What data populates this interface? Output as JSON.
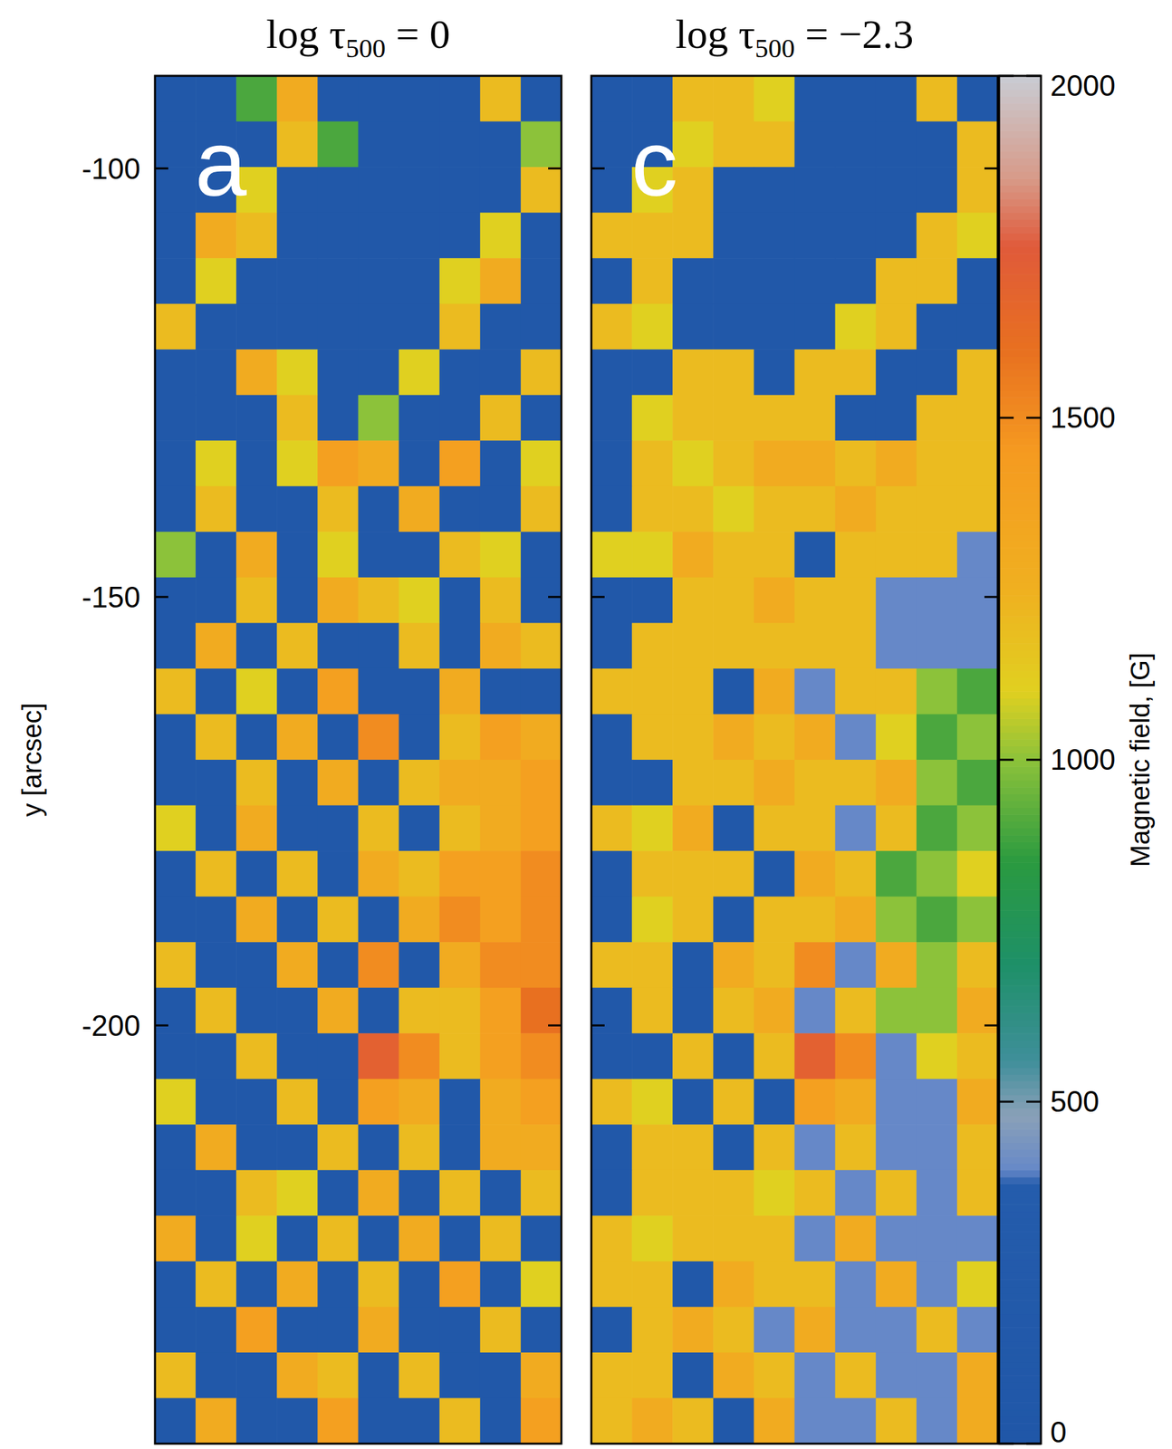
{
  "chart_data": [
    {
      "type": "heatmap",
      "title": "log τ500 = 0",
      "panel": "a",
      "ylabel": "y [arcsec]",
      "ylim": [
        -248.8,
        -89.2
      ],
      "yticks": [
        -100,
        -150,
        -200
      ],
      "tick_labels": "y",
      "z": [
        [
          100,
          100,
          900,
          1300,
          100,
          100,
          100,
          100,
          1200,
          100
        ],
        [
          100,
          100,
          100,
          1200,
          900,
          100,
          100,
          100,
          100,
          1000
        ],
        [
          100,
          100,
          1100,
          100,
          100,
          100,
          100,
          100,
          100,
          1200
        ],
        [
          100,
          1300,
          1200,
          100,
          100,
          100,
          100,
          100,
          1100,
          100
        ],
        [
          100,
          1100,
          100,
          100,
          100,
          100,
          100,
          1100,
          1300,
          100
        ],
        [
          1200,
          100,
          100,
          100,
          100,
          100,
          100,
          1200,
          100,
          100
        ],
        [
          100,
          100,
          1300,
          1100,
          100,
          100,
          1100,
          100,
          100,
          1200
        ],
        [
          100,
          100,
          100,
          1200,
          100,
          1000,
          100,
          100,
          1200,
          100
        ],
        [
          100,
          1100,
          100,
          1100,
          1400,
          1300,
          100,
          1400,
          100,
          1100
        ],
        [
          100,
          1200,
          100,
          100,
          1200,
          100,
          1300,
          100,
          100,
          1200
        ],
        [
          1000,
          100,
          1300,
          100,
          1100,
          100,
          100,
          1200,
          1100,
          100
        ],
        [
          100,
          100,
          1200,
          100,
          1300,
          1200,
          1100,
          100,
          1200,
          100
        ],
        [
          100,
          1300,
          100,
          1200,
          100,
          100,
          1200,
          100,
          1300,
          1200
        ],
        [
          1200,
          100,
          1100,
          100,
          1400,
          100,
          100,
          1300,
          100,
          100
        ],
        [
          100,
          1200,
          100,
          1300,
          100,
          1500,
          100,
          1200,
          1400,
          1300
        ],
        [
          100,
          100,
          1200,
          100,
          1300,
          100,
          1200,
          1300,
          1300,
          1400
        ],
        [
          1100,
          100,
          1300,
          100,
          100,
          1200,
          100,
          1200,
          1300,
          1400
        ],
        [
          100,
          1200,
          100,
          1200,
          100,
          1300,
          1200,
          1400,
          1400,
          1500
        ],
        [
          100,
          100,
          1300,
          100,
          1200,
          100,
          1300,
          1500,
          1400,
          1500
        ],
        [
          1200,
          100,
          100,
          1300,
          100,
          1500,
          100,
          1300,
          1500,
          1500
        ],
        [
          100,
          1200,
          100,
          100,
          1300,
          100,
          1200,
          1200,
          1400,
          1600
        ],
        [
          100,
          100,
          1200,
          100,
          100,
          1700,
          1500,
          1200,
          1400,
          1500
        ],
        [
          1100,
          100,
          100,
          1200,
          100,
          1400,
          1300,
          100,
          1300,
          1400
        ],
        [
          100,
          1300,
          100,
          100,
          1200,
          100,
          1200,
          100,
          1300,
          1300
        ],
        [
          100,
          100,
          1200,
          1100,
          100,
          1300,
          100,
          1200,
          100,
          1200
        ],
        [
          1300,
          100,
          1100,
          100,
          1200,
          100,
          1300,
          100,
          1200,
          100
        ],
        [
          100,
          1200,
          100,
          1300,
          100,
          1200,
          100,
          1400,
          100,
          1100
        ],
        [
          100,
          100,
          1400,
          100,
          100,
          1300,
          100,
          100,
          1200,
          100
        ],
        [
          1200,
          100,
          100,
          1300,
          1200,
          100,
          1200,
          100,
          100,
          1300
        ],
        [
          100,
          1300,
          100,
          100,
          1400,
          100,
          100,
          1200,
          100,
          1400
        ]
      ]
    },
    {
      "type": "heatmap",
      "title": "log τ500 = −2.3",
      "panel": "c",
      "ylim": [
        -248.8,
        -89.2
      ],
      "yticks": [
        -100,
        -150,
        -200
      ],
      "tick_labels": false,
      "colorbar": {
        "range": [
          0,
          2000
        ],
        "ticks": [
          0,
          500,
          1000,
          1500,
          2000
        ],
        "label": "Magnetic field, [G]"
      },
      "z": [
        [
          100,
          100,
          1200,
          1200,
          1100,
          100,
          100,
          100,
          1200,
          100
        ],
        [
          100,
          100,
          1100,
          1200,
          1200,
          100,
          100,
          100,
          100,
          1200
        ],
        [
          100,
          1100,
          1200,
          100,
          100,
          100,
          100,
          100,
          100,
          1200
        ],
        [
          1200,
          1200,
          1200,
          100,
          100,
          100,
          100,
          100,
          1200,
          1100
        ],
        [
          100,
          1200,
          100,
          100,
          100,
          100,
          100,
          1200,
          1200,
          100
        ],
        [
          1200,
          1100,
          100,
          100,
          100,
          100,
          1100,
          1200,
          100,
          100
        ],
        [
          100,
          100,
          1200,
          1200,
          100,
          1200,
          1200,
          100,
          100,
          1200
        ],
        [
          100,
          1100,
          1200,
          1200,
          1200,
          1200,
          100,
          100,
          1200,
          1200
        ],
        [
          100,
          1200,
          1100,
          1200,
          1300,
          1300,
          1200,
          1300,
          1200,
          1200
        ],
        [
          100,
          1200,
          1200,
          1100,
          1200,
          1200,
          1300,
          1200,
          1200,
          1200
        ],
        [
          1100,
          1100,
          1300,
          1200,
          1200,
          100,
          1200,
          1200,
          1200,
          400
        ],
        [
          100,
          100,
          1200,
          1200,
          1300,
          1200,
          1200,
          400,
          400,
          400
        ],
        [
          100,
          1200,
          1200,
          1200,
          1200,
          1200,
          1200,
          400,
          400,
          400
        ],
        [
          1200,
          1200,
          1200,
          100,
          1300,
          400,
          1200,
          1200,
          1000,
          900
        ],
        [
          100,
          1200,
          1200,
          1300,
          1200,
          1300,
          400,
          1100,
          900,
          1000
        ],
        [
          100,
          100,
          1200,
          1200,
          1300,
          1200,
          1200,
          1300,
          1000,
          900
        ],
        [
          1200,
          1100,
          1300,
          100,
          1200,
          1200,
          400,
          1200,
          900,
          1000
        ],
        [
          100,
          1200,
          1200,
          1200,
          100,
          1300,
          1200,
          900,
          1000,
          1100
        ],
        [
          100,
          1100,
          1200,
          100,
          1200,
          1200,
          1300,
          1000,
          900,
          1000
        ],
        [
          1200,
          1200,
          100,
          1300,
          1200,
          1500,
          400,
          1300,
          1000,
          1200
        ],
        [
          100,
          1200,
          100,
          1200,
          1300,
          400,
          1200,
          1000,
          1000,
          1300
        ],
        [
          100,
          100,
          1200,
          100,
          1200,
          1700,
          1500,
          400,
          1100,
          1200
        ],
        [
          1200,
          1100,
          100,
          1200,
          100,
          1400,
          1300,
          400,
          400,
          1300
        ],
        [
          100,
          1200,
          1200,
          100,
          1200,
          400,
          1200,
          400,
          400,
          1200
        ],
        [
          100,
          1200,
          1200,
          1200,
          1100,
          1200,
          400,
          1200,
          400,
          1200
        ],
        [
          1200,
          1100,
          1200,
          1200,
          1200,
          400,
          1300,
          400,
          400,
          400
        ],
        [
          1200,
          1200,
          100,
          1300,
          1200,
          1200,
          400,
          1300,
          400,
          1100
        ],
        [
          100,
          1200,
          1300,
          1200,
          400,
          1300,
          400,
          400,
          1200,
          400
        ],
        [
          1200,
          1200,
          100,
          1300,
          1200,
          400,
          1200,
          400,
          400,
          1300
        ],
        [
          1200,
          1300,
          1200,
          100,
          1300,
          400,
          400,
          1200,
          400,
          1300
        ]
      ]
    }
  ]
}
